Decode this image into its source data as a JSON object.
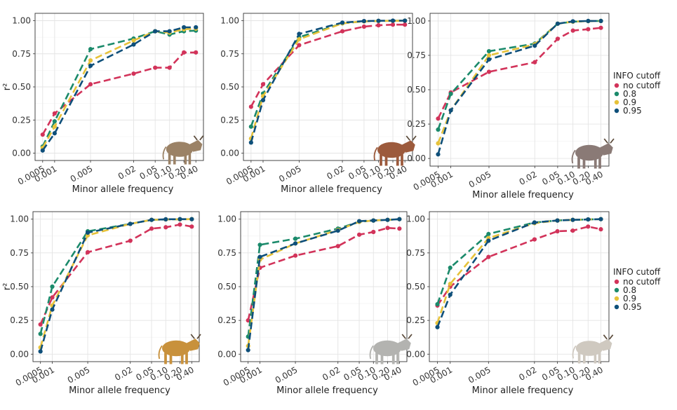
{
  "colors": {
    "no_cutoff": "#d2335a",
    "c08": "#1b8a6b",
    "c09": "#e6c23a",
    "c095": "#0e4f7a"
  },
  "icons": [
    "cattle-photo-1",
    "cattle-photo-2",
    "cattle-photo-3",
    "cattle-photo-4",
    "cattle-photo-5",
    "cattle-photo-6"
  ],
  "legend": {
    "title": "INFO cutoff",
    "items": [
      "no cutoff",
      "0.8",
      "0.9",
      "0.95"
    ]
  },
  "chart_data": [
    {
      "type": "line",
      "xlabel": "Minor allele frequency",
      "ylabel": "r²",
      "x_tick_labels": [
        "0.0005",
        "0.001",
        "0.005",
        "0.02",
        "0.05",
        "0.10",
        "0.20",
        "0.40"
      ],
      "ylim": [
        0,
        1
      ],
      "y_ticks": [
        "0.00",
        "0.25",
        "0.50",
        "0.75",
        "1.00"
      ],
      "series": [
        {
          "name": "no cutoff",
          "values": [
            0.14,
            0.3,
            0.52,
            0.6,
            0.645,
            0.645,
            0.76,
            0.76
          ]
        },
        {
          "name": "0.8",
          "values": [
            0.05,
            0.24,
            0.785,
            0.865,
            0.92,
            0.895,
            0.92,
            0.925
          ]
        },
        {
          "name": "0.9",
          "values": [
            0.04,
            0.2,
            0.7,
            0.85,
            0.92,
            0.91,
            0.935,
            0.94
          ]
        },
        {
          "name": "0.95",
          "values": [
            0.02,
            0.15,
            0.66,
            0.82,
            0.92,
            0.92,
            0.95,
            0.95
          ]
        }
      ]
    },
    {
      "type": "line",
      "xlabel": "Minor allele frequency",
      "ylabel": "",
      "x_tick_labels": [
        "0.0005",
        "0.001",
        "0.005",
        "0.02",
        "0.05",
        "0.10",
        "0.20",
        "0.40"
      ],
      "ylim": [
        0,
        1
      ],
      "y_ticks": [
        "0.00",
        "0.25",
        "0.50",
        "0.75",
        "1.00"
      ],
      "series": [
        {
          "name": "no cutoff",
          "values": [
            0.35,
            0.52,
            0.815,
            0.92,
            0.955,
            0.965,
            0.97,
            0.97
          ]
        },
        {
          "name": "0.8",
          "values": [
            0.2,
            0.45,
            0.875,
            0.98,
            0.995,
            0.998,
            0.999,
            1.0
          ]
        },
        {
          "name": "0.9",
          "values": [
            0.11,
            0.43,
            0.86,
            0.98,
            0.995,
            0.998,
            0.999,
            1.0
          ]
        },
        {
          "name": "0.95",
          "values": [
            0.08,
            0.4,
            0.9,
            0.985,
            0.997,
            0.999,
            1.0,
            1.0
          ]
        }
      ]
    },
    {
      "type": "line",
      "xlabel": "Minor allele frequency",
      "ylabel": "",
      "x_tick_labels": [
        "0.0005",
        "0.001",
        "0.005",
        "0.02",
        "0.05",
        "0.10",
        "0.20",
        "0.40"
      ],
      "ylim": [
        0,
        1
      ],
      "y_ticks": [
        "0.00",
        "0.25",
        "0.50",
        "0.75",
        "1.00"
      ],
      "series": [
        {
          "name": "no cutoff",
          "values": [
            0.29,
            0.48,
            0.63,
            0.7,
            0.87,
            0.93,
            0.94,
            0.95
          ]
        },
        {
          "name": "0.8",
          "values": [
            0.21,
            0.47,
            0.78,
            0.835,
            0.98,
            0.995,
            0.999,
            1.0
          ]
        },
        {
          "name": "0.9",
          "values": [
            0.11,
            0.35,
            0.75,
            0.83,
            0.98,
            0.995,
            0.999,
            1.0
          ]
        },
        {
          "name": "0.95",
          "values": [
            0.03,
            0.35,
            0.72,
            0.82,
            0.98,
            0.997,
            1.0,
            1.0
          ]
        }
      ]
    },
    {
      "type": "line",
      "xlabel": "Minor allele frequency",
      "ylabel": "r²",
      "x_tick_labels": [
        "0.0005",
        "0.001",
        "0.005",
        "0.02",
        "0.05",
        "0.10",
        "0.20",
        "0.40"
      ],
      "ylim": [
        0,
        1
      ],
      "y_ticks": [
        "0.00",
        "0.25",
        "0.50",
        "0.75",
        "1.00"
      ],
      "series": [
        {
          "name": "no cutoff",
          "values": [
            0.22,
            0.42,
            0.755,
            0.84,
            0.93,
            0.94,
            0.96,
            0.945
          ]
        },
        {
          "name": "0.8",
          "values": [
            0.15,
            0.5,
            0.91,
            0.965,
            0.995,
            0.998,
            0.999,
            1.0
          ]
        },
        {
          "name": "0.9",
          "values": [
            0.05,
            0.36,
            0.88,
            0.965,
            0.995,
            0.998,
            0.999,
            1.0
          ]
        },
        {
          "name": "0.95",
          "values": [
            0.02,
            0.33,
            0.9,
            0.965,
            0.995,
            0.999,
            1.0,
            1.0
          ]
        }
      ]
    },
    {
      "type": "line",
      "xlabel": "Minor allele frequency",
      "ylabel": "",
      "x_tick_labels": [
        "0.0005",
        "0.001",
        "0.005",
        "0.02",
        "0.05",
        "0.10",
        "0.20",
        "0.40"
      ],
      "ylim": [
        0,
        1
      ],
      "y_ticks": [
        "0.00",
        "0.25",
        "0.50",
        "0.75",
        "1.00"
      ],
      "series": [
        {
          "name": "no cutoff",
          "values": [
            0.25,
            0.64,
            0.73,
            0.8,
            0.885,
            0.905,
            0.935,
            0.93
          ]
        },
        {
          "name": "0.8",
          "values": [
            0.13,
            0.81,
            0.855,
            0.93,
            0.98,
            0.99,
            0.995,
            1.0
          ]
        },
        {
          "name": "0.9",
          "values": [
            0.06,
            0.7,
            0.82,
            0.92,
            0.98,
            0.99,
            0.995,
            1.0
          ]
        },
        {
          "name": "0.95",
          "values": [
            0.03,
            0.72,
            0.82,
            0.915,
            0.985,
            0.99,
            0.995,
            1.0
          ]
        }
      ]
    },
    {
      "type": "line",
      "xlabel": "Minor allele frequency",
      "ylabel": "",
      "x_tick_labels": [
        "0.0005",
        "0.001",
        "0.005",
        "0.02",
        "0.05",
        "0.10",
        "0.20",
        "0.40"
      ],
      "ylim": [
        0,
        1
      ],
      "y_ticks": [
        "0.00",
        "0.25",
        "0.50",
        "0.75",
        "1.00"
      ],
      "series": [
        {
          "name": "no cutoff",
          "values": [
            0.36,
            0.5,
            0.72,
            0.85,
            0.91,
            0.915,
            0.945,
            0.925
          ]
        },
        {
          "name": "0.8",
          "values": [
            0.37,
            0.64,
            0.89,
            0.975,
            0.99,
            0.995,
            0.998,
            1.0
          ]
        },
        {
          "name": "0.9",
          "values": [
            0.23,
            0.52,
            0.86,
            0.97,
            0.99,
            0.995,
            0.998,
            1.0
          ]
        },
        {
          "name": "0.95",
          "values": [
            0.2,
            0.44,
            0.84,
            0.975,
            0.99,
            0.995,
            0.998,
            1.0
          ]
        }
      ]
    }
  ]
}
